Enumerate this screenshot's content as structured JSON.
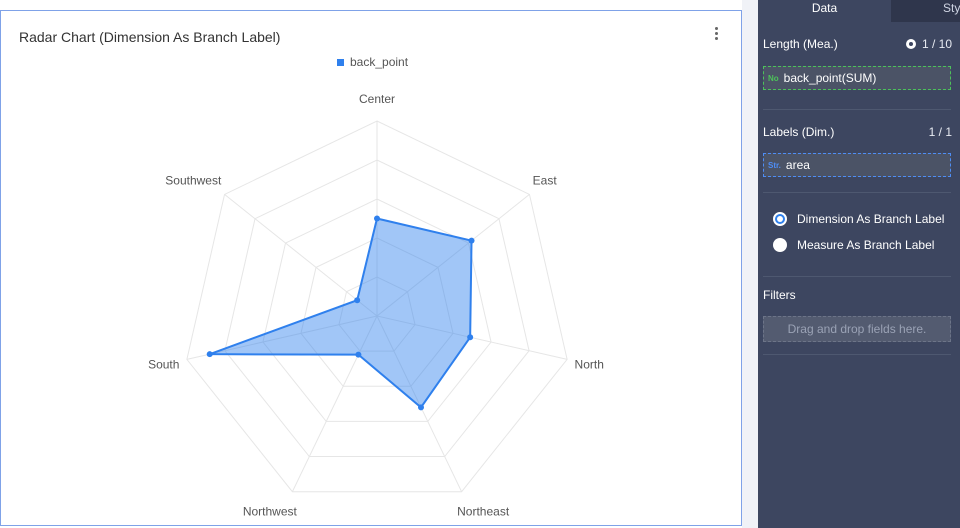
{
  "chart_panel": {
    "title": "Radar Chart  (Dimension As Branch Label)"
  },
  "chart_data": {
    "type": "radar",
    "title": "Radar Chart  (Dimension As Branch Label)",
    "categories": [
      "Center",
      "East",
      "North",
      "Northeast",
      "Northwest",
      "South",
      "Southwest"
    ],
    "series": [
      {
        "name": "back_point",
        "values": [
          5,
          6.2,
          4.9,
          5.2,
          2.2,
          8.8,
          1.3
        ],
        "color": "#2f80ed"
      }
    ],
    "rlim": [
      0,
      10
    ],
    "grid_levels": 5,
    "legend_position": "top-center"
  },
  "sidebar": {
    "tabs": {
      "data": "Data",
      "style": "Style"
    },
    "length_section": {
      "title": "Length (Mea.)",
      "count": "1 / 10"
    },
    "length_field": {
      "type_tag": "No",
      "label": "back_point(SUM)"
    },
    "labels_section": {
      "title": "Labels (Dim.)",
      "count": "1 / 1"
    },
    "labels_field": {
      "type_tag": "Str.",
      "label": "area"
    },
    "branch_options": [
      {
        "label": "Dimension As Branch Label",
        "selected": true
      },
      {
        "label": "Measure As Branch Label",
        "selected": false
      }
    ],
    "filters": {
      "title": "Filters",
      "placeholder": "Drag and drop fields here."
    }
  }
}
